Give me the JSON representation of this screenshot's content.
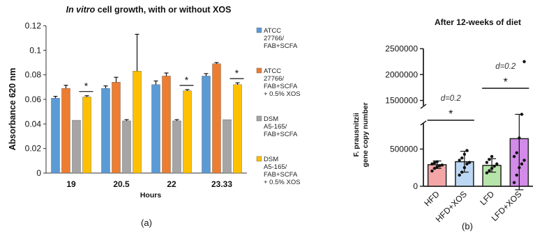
{
  "chart_data": [
    {
      "type": "bar",
      "title_prefix": "In vitro",
      "title_rest": " cell growth, with or without XOS",
      "xlabel": "Hours",
      "ylabel": "Absorbance 620 nm",
      "ylim": [
        0,
        0.12
      ],
      "yticks": [
        "0",
        "0.02",
        "0.04",
        "0.06",
        "0.08",
        "0.1",
        "0.12"
      ],
      "grid": false,
      "legend_position": "right",
      "categories": [
        "19",
        "20.5",
        "22",
        "23.33"
      ],
      "series": [
        {
          "name_lines": [
            "ATCC",
            "27766/",
            "FAB+SCFA"
          ],
          "color": "#5b9bd5",
          "values": [
            0.061,
            0.069,
            0.072,
            0.079
          ],
          "errors": [
            0.0015,
            0.002,
            0.003,
            0.002
          ]
        },
        {
          "name_lines": [
            "ATCC",
            "27766/",
            "FAB+SCFA",
            "+ 0.5% XOS"
          ],
          "color": "#ed7d31",
          "values": [
            0.069,
            0.074,
            0.079,
            0.089
          ],
          "errors": [
            0.0025,
            0.004,
            0.0025,
            0.001
          ]
        },
        {
          "name_lines": [
            "DSM",
            "A5-165/",
            "FAB+SCFA"
          ],
          "color": "#a5a5a5",
          "values": [
            0.043,
            0.0425,
            0.0425,
            0.0435
          ],
          "errors": [
            0,
            0.001,
            0.001,
            0
          ]
        },
        {
          "name_lines": [
            "DSM",
            "A5-165/",
            "FAB+SCFA",
            "+ 0.5% XOS"
          ],
          "color": "#ffc000",
          "values": [
            0.062,
            0.083,
            0.067,
            0.072
          ],
          "errors": [
            0.001,
            0.03,
            0.001,
            0.0015
          ]
        }
      ],
      "significance": [
        {
          "category_index": 0,
          "label": "*"
        },
        {
          "category_index": 2,
          "label": "*"
        },
        {
          "category_index": 3,
          "label": "*"
        }
      ],
      "panel_label": "(a)"
    },
    {
      "type": "bar",
      "title": "After 12-weeks of diet",
      "ylabel_lines": [
        "F. prausnitzii",
        "gene copy number"
      ],
      "xlabel": "",
      "ylim": [
        0,
        2500000
      ],
      "axis_break": [
        850000,
        1400000
      ],
      "yticks": [
        "0",
        "500000",
        "1500000",
        "2000000",
        "2500000"
      ],
      "grid": false,
      "categories": [
        "HFD",
        "HFD+XOS",
        "LFD",
        "LFD+XOS"
      ],
      "colors": [
        "#f4a6a6",
        "#bcd7f3",
        "#b7e4a8",
        "#d28be8"
      ],
      "values": [
        290000,
        330000,
        280000,
        640000
      ],
      "errors": [
        50000,
        140000,
        90000,
        680000
      ],
      "points": [
        [
          205000,
          240000,
          260000,
          275000,
          285000,
          300000,
          315000,
          330000
        ],
        [
          150000,
          190000,
          250000,
          300000,
          320000,
          350000,
          380000,
          430000,
          480000
        ],
        [
          180000,
          210000,
          240000,
          270000,
          300000,
          320000,
          360000,
          400000
        ],
        [
          50000,
          150000,
          250000,
          300000,
          350000,
          400000,
          450000,
          650000,
          1000000,
          2250000
        ]
      ],
      "brackets": [
        {
          "from": 0,
          "to": 1,
          "label": "*",
          "note": "d=0.2"
        },
        {
          "from": 2,
          "to": 3,
          "label": "*",
          "note": "d=0.2"
        }
      ],
      "panel_label": "(b)"
    }
  ]
}
